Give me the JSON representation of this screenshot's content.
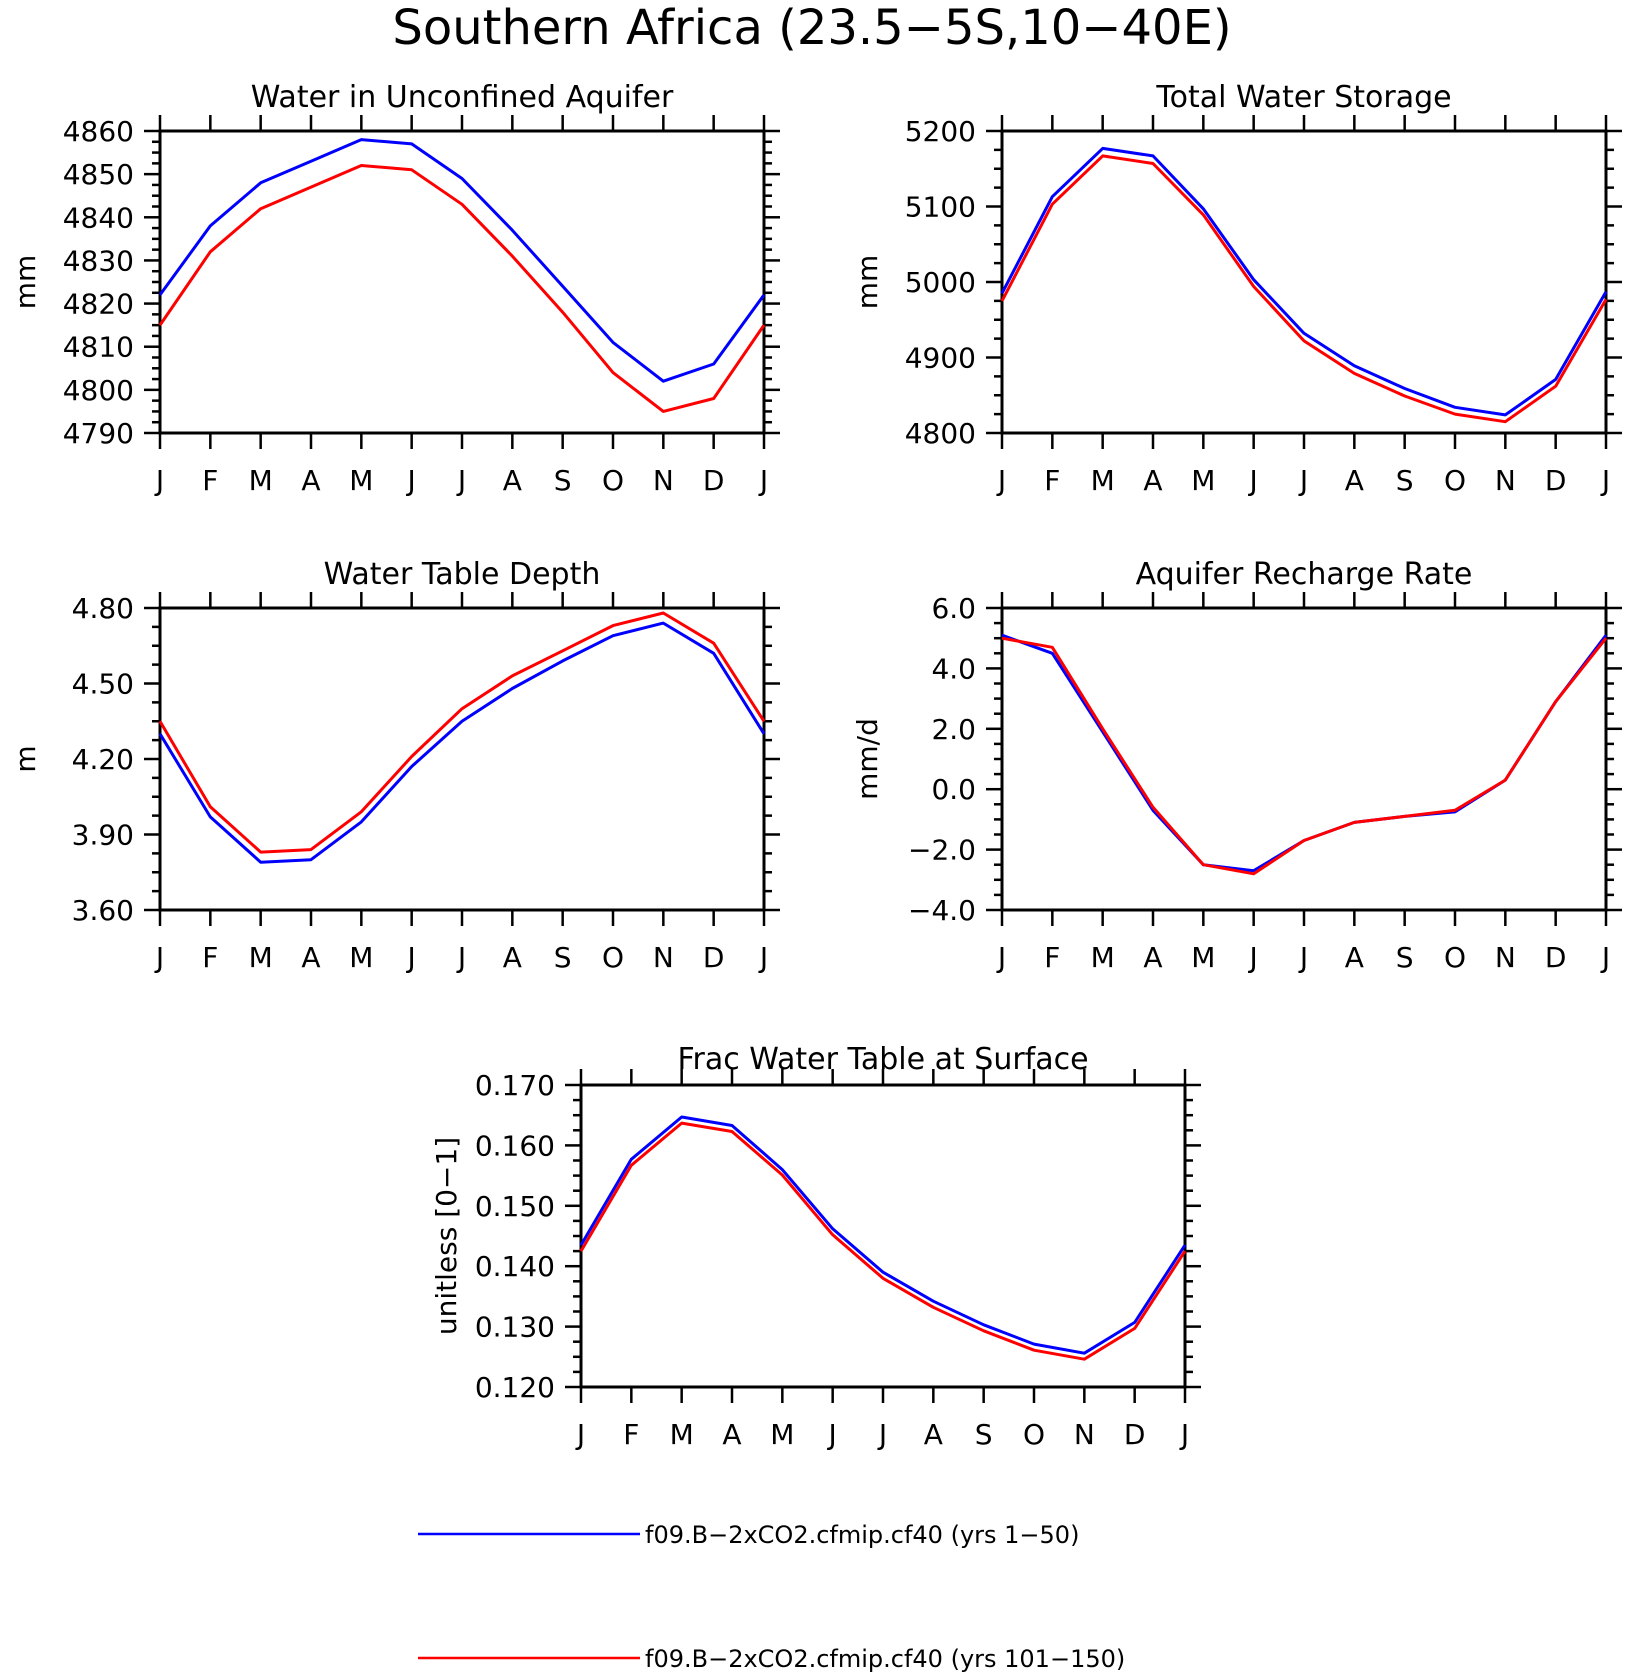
{
  "figure_title": "Southern Africa (23.5−5S,10−40E)",
  "colors": {
    "series_1": "#0000ff",
    "series_2": "#ff0000"
  },
  "legend": [
    {
      "label": "f09.B−2xCO2.cfmip.cf40 (yrs 1−50)",
      "color": "#0000ff"
    },
    {
      "label": "f09.B−2xCO2.cfmip.cf40 (yrs 101−150)",
      "color": "#ff0000"
    }
  ],
  "chart_data": [
    {
      "type": "line",
      "title": "Water in Unconfined Aquifer",
      "ylabel": "mm",
      "xlabel": "",
      "categories": [
        "J",
        "F",
        "M",
        "A",
        "M",
        "J",
        "J",
        "A",
        "S",
        "O",
        "N",
        "D",
        "J"
      ],
      "ylim": [
        4790,
        4860
      ],
      "yticks": [
        4790,
        4800,
        4810,
        4820,
        4830,
        4840,
        4850,
        4860
      ],
      "ytick_labels": [
        "4790",
        "4800",
        "4810",
        "4820",
        "4830",
        "4840",
        "4850",
        "4860"
      ],
      "grid": false,
      "series": [
        {
          "name": "f09.B−2xCO2.cfmip.cf40 (yrs 1−50)",
          "color": "#0000ff",
          "values": [
            4822,
            4838,
            4848,
            4853,
            4858,
            4857,
            4849,
            4837,
            4824,
            4811,
            4802,
            4806,
            4822
          ]
        },
        {
          "name": "f09.B−2xCO2.cfmip.cf40 (yrs 101−150)",
          "color": "#ff0000",
          "values": [
            4815,
            4832,
            4842,
            4847,
            4852,
            4851,
            4843,
            4831,
            4818,
            4804,
            4795,
            4798,
            4815
          ]
        }
      ]
    },
    {
      "type": "line",
      "title": "Total Water Storage",
      "ylabel": "mm",
      "xlabel": "",
      "categories": [
        "J",
        "F",
        "M",
        "A",
        "M",
        "J",
        "J",
        "A",
        "S",
        "O",
        "N",
        "D",
        "J"
      ],
      "ylim": [
        4800,
        5200
      ],
      "yticks": [
        4800,
        4900,
        5000,
        5100,
        5200
      ],
      "ytick_labels": [
        "4800",
        "4900",
        "5000",
        "5100",
        "5200"
      ],
      "grid": false,
      "series": [
        {
          "name": "f09.B−2xCO2.cfmip.cf40 (yrs 1−50)",
          "color": "#0000ff",
          "values": [
            4985,
            5113,
            5177,
            5167,
            5097,
            5003,
            4932,
            4889,
            4859,
            4834,
            4824,
            4871,
            4987
          ]
        },
        {
          "name": "f09.B−2xCO2.cfmip.cf40 (yrs 101−150)",
          "color": "#ff0000",
          "values": [
            4975,
            5103,
            5167,
            5157,
            5089,
            4994,
            4922,
            4879,
            4849,
            4825,
            4815,
            4862,
            4977
          ]
        }
      ]
    },
    {
      "type": "line",
      "title": "Water Table Depth",
      "ylabel": "m",
      "xlabel": "",
      "categories": [
        "J",
        "F",
        "M",
        "A",
        "M",
        "J",
        "J",
        "A",
        "S",
        "O",
        "N",
        "D",
        "J"
      ],
      "ylim": [
        3.6,
        4.8
      ],
      "yticks": [
        3.6,
        3.9,
        4.2,
        4.5,
        4.8
      ],
      "ytick_labels": [
        "3.60",
        "3.90",
        "4.20",
        "4.50",
        "4.80"
      ],
      "grid": false,
      "series": [
        {
          "name": "f09.B−2xCO2.cfmip.cf40 (yrs 1−50)",
          "color": "#0000ff",
          "values": [
            4.3,
            3.97,
            3.79,
            3.8,
            3.95,
            4.17,
            4.35,
            4.48,
            4.59,
            4.69,
            4.74,
            4.62,
            4.3
          ]
        },
        {
          "name": "f09.B−2xCO2.cfmip.cf40 (yrs 101−150)",
          "color": "#ff0000",
          "values": [
            4.35,
            4.01,
            3.83,
            3.84,
            3.99,
            4.21,
            4.4,
            4.53,
            4.63,
            4.73,
            4.78,
            4.66,
            4.35
          ]
        }
      ]
    },
    {
      "type": "line",
      "title": "Aquifer Recharge Rate",
      "ylabel": "mm/d",
      "xlabel": "",
      "categories": [
        "J",
        "F",
        "M",
        "A",
        "M",
        "J",
        "J",
        "A",
        "S",
        "O",
        "N",
        "D",
        "J"
      ],
      "ylim": [
        -4.0,
        6.0
      ],
      "yticks": [
        -4.0,
        -2.0,
        0.0,
        2.0,
        4.0,
        6.0
      ],
      "ytick_labels": [
        "−4.0",
        "−2.0",
        "0.0",
        "2.0",
        "4.0",
        "6.0"
      ],
      "grid": false,
      "series": [
        {
          "name": "f09.B−2xCO2.cfmip.cf40 (yrs 1−50)",
          "color": "#0000ff",
          "values": [
            5.1,
            4.5,
            1.9,
            -0.7,
            -2.5,
            -2.7,
            -1.7,
            -1.1,
            -0.9,
            -0.75,
            0.3,
            2.9,
            5.1
          ]
        },
        {
          "name": "f09.B−2xCO2.cfmip.cf40 (yrs 101−150)",
          "color": "#ff0000",
          "values": [
            5.0,
            4.7,
            2.0,
            -0.6,
            -2.5,
            -2.8,
            -1.7,
            -1.1,
            -0.9,
            -0.7,
            0.3,
            2.9,
            5.0
          ]
        }
      ]
    },
    {
      "type": "line",
      "title": "Frac Water Table at Surface",
      "ylabel": "unitless [0−1]",
      "xlabel": "",
      "categories": [
        "J",
        "F",
        "M",
        "A",
        "M",
        "J",
        "J",
        "A",
        "S",
        "O",
        "N",
        "D",
        "J"
      ],
      "ylim": [
        0.12,
        0.17
      ],
      "yticks": [
        0.12,
        0.13,
        0.14,
        0.15,
        0.16,
        0.17
      ],
      "ytick_labels": [
        "0.120",
        "0.130",
        "0.140",
        "0.150",
        "0.160",
        "0.170"
      ],
      "grid": false,
      "series": [
        {
          "name": "f09.B−2xCO2.cfmip.cf40 (yrs 1−50)",
          "color": "#0000ff",
          "values": [
            0.1435,
            0.1577,
            0.1647,
            0.1633,
            0.156,
            0.1462,
            0.139,
            0.1342,
            0.1303,
            0.1271,
            0.1256,
            0.1307,
            0.1435
          ]
        },
        {
          "name": "f09.B−2xCO2.cfmip.cf40 (yrs 101−150)",
          "color": "#ff0000",
          "values": [
            0.1425,
            0.1567,
            0.1637,
            0.1623,
            0.1551,
            0.1452,
            0.138,
            0.1332,
            0.1293,
            0.1261,
            0.1246,
            0.1297,
            0.1425
          ]
        }
      ]
    }
  ]
}
